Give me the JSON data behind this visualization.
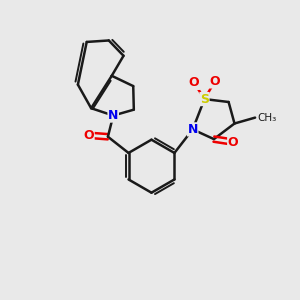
{
  "bg_color": "#e9e9e9",
  "bond_color": "#1a1a1a",
  "bond_width": 1.8,
  "atom_colors": {
    "N": "#0000ee",
    "O": "#ee0000",
    "S": "#cccc00",
    "C": "#1a1a1a"
  },
  "font_size_atom": 9
}
